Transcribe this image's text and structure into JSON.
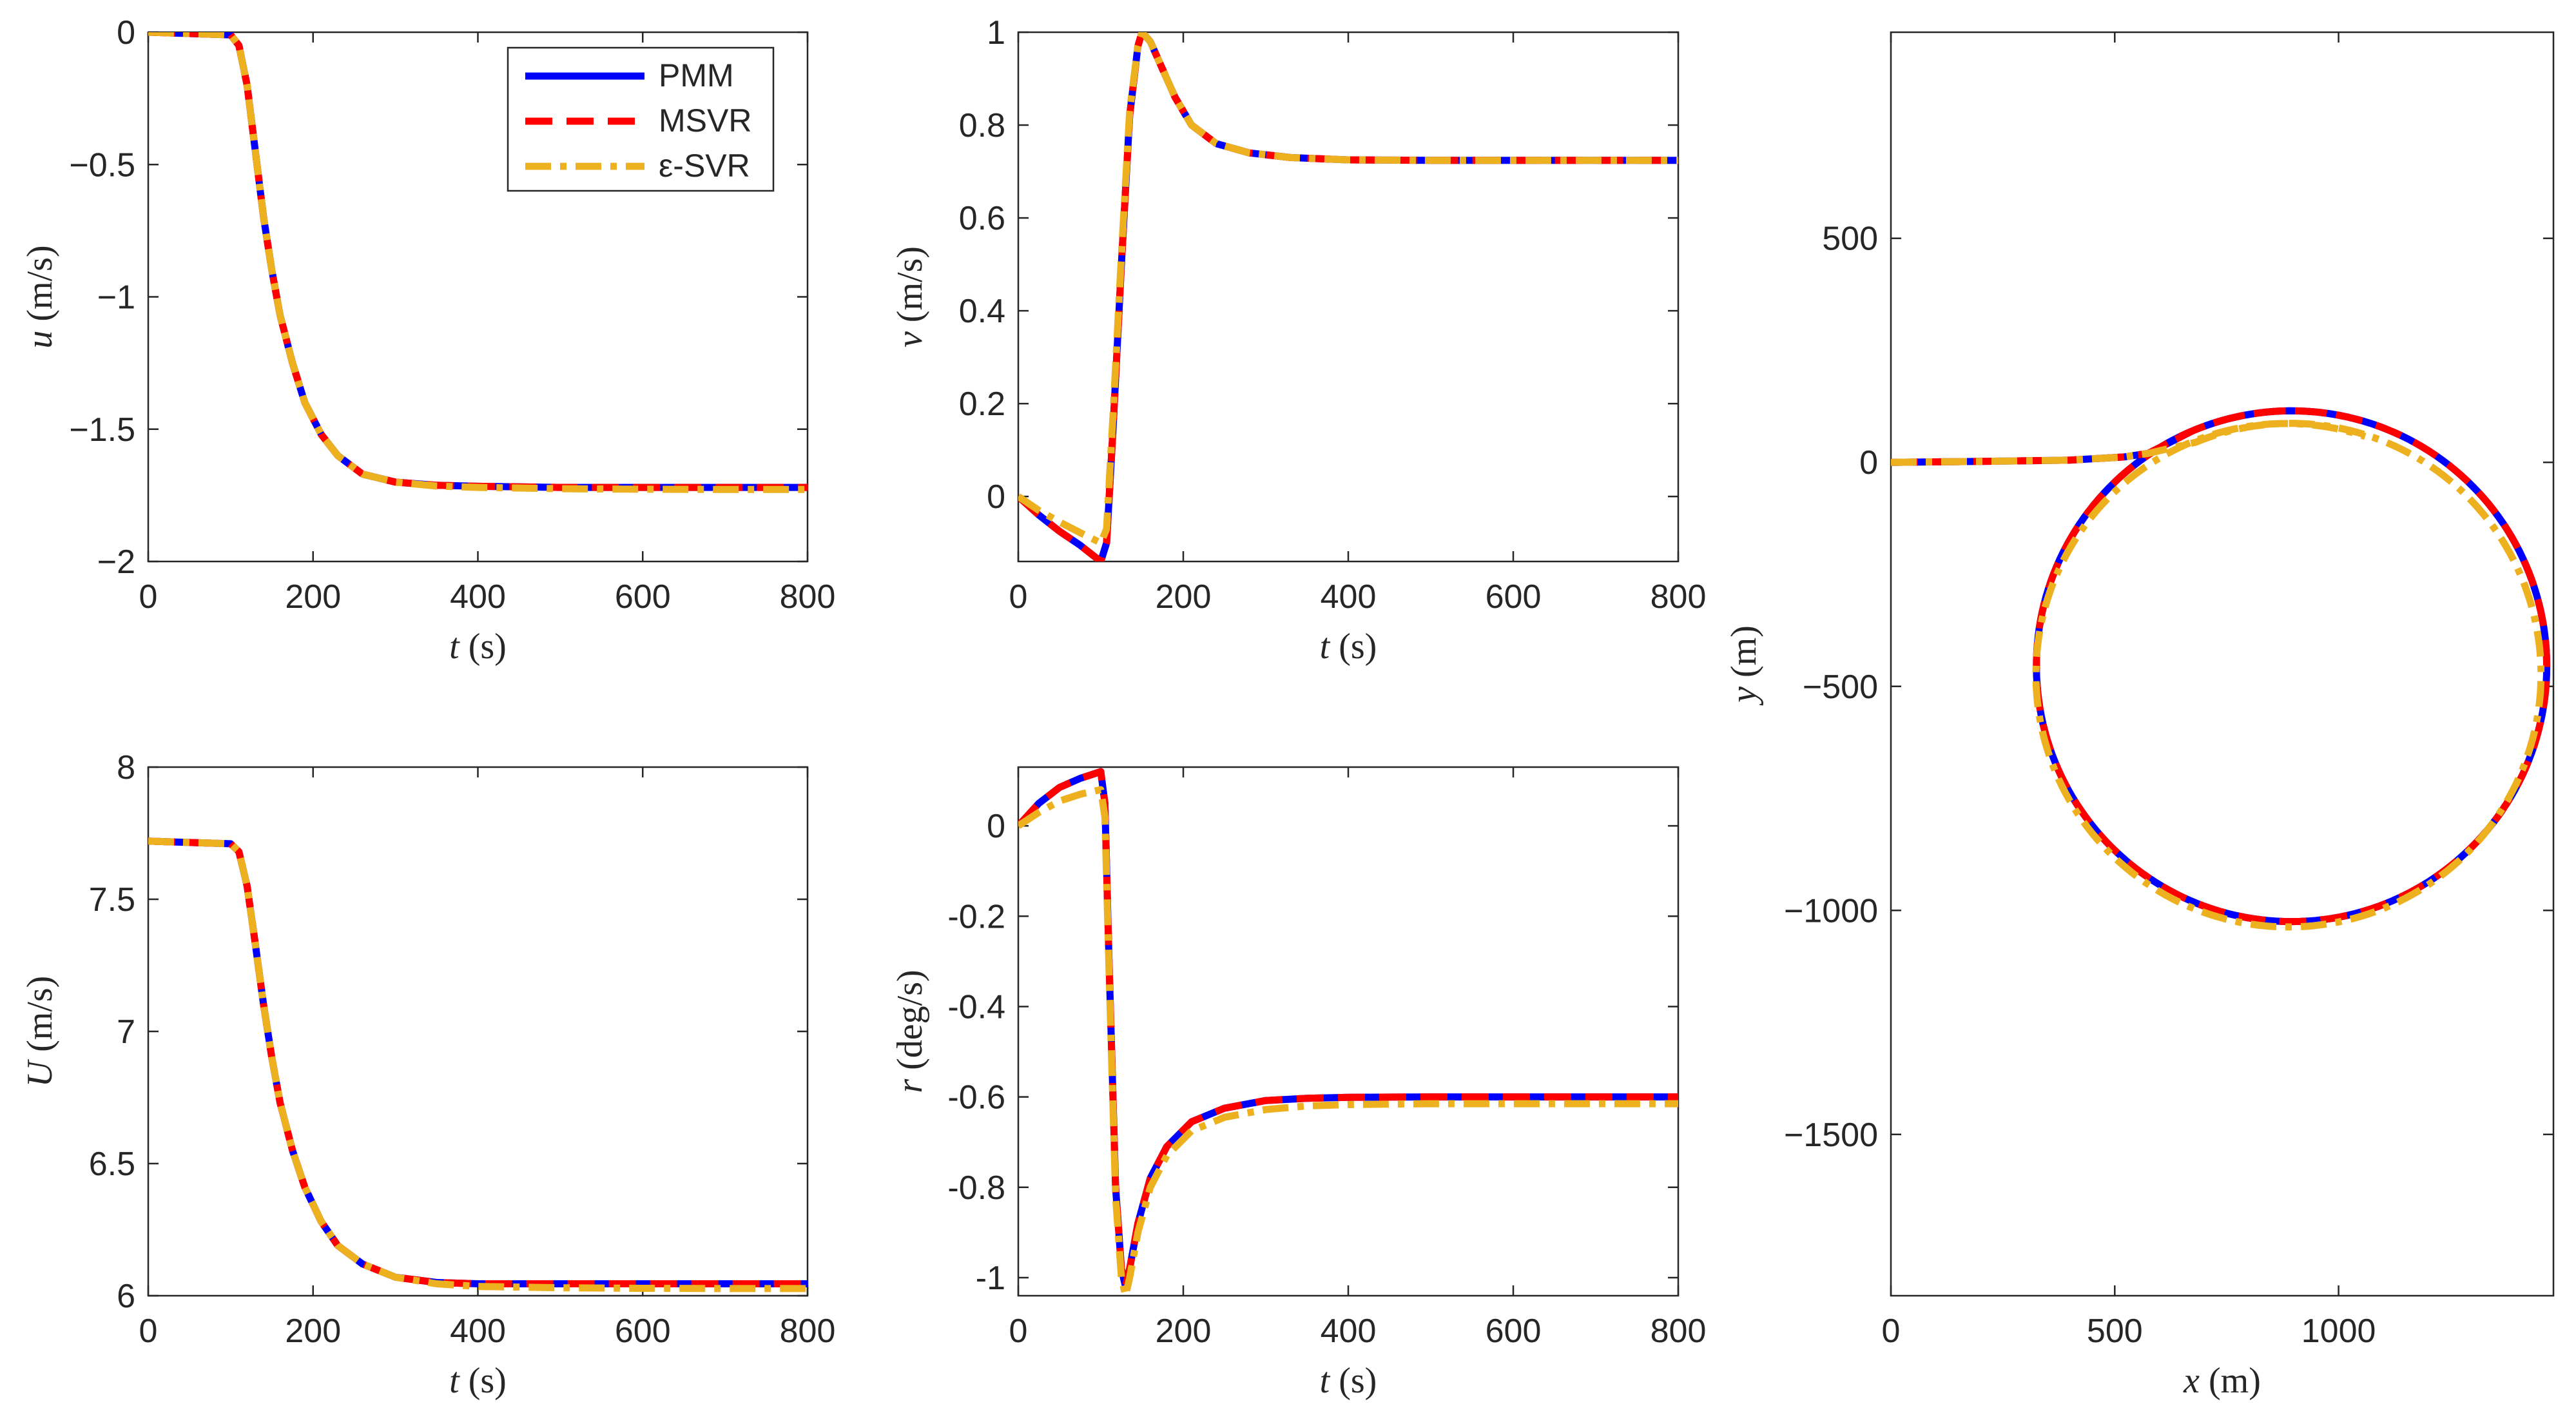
{
  "colors": {
    "PMM": "#0000ff",
    "MSVR": "#ff0000",
    "eps_SVR": "#edb120",
    "axis": "#262626"
  },
  "legend": {
    "location": "top-right of first panel",
    "entries": [
      {
        "key": "PMM",
        "label": "PMM"
      },
      {
        "key": "MSVR",
        "label": "MSVR"
      },
      {
        "key": "eps_SVR",
        "label": "ε-SVR"
      }
    ]
  },
  "chart_data": [
    {
      "id": "u",
      "type": "line",
      "ylabel_var": "u",
      "ylabel_unit": " (m/s)",
      "xlabel_var": "t",
      "xlabel_unit": " (s)",
      "xlim": [
        0,
        800
      ],
      "ylim": [
        -2,
        0
      ],
      "xticks": [
        0,
        200,
        400,
        600,
        800
      ],
      "yticks": [
        0,
        -0.5,
        -1,
        -1.5,
        -2
      ],
      "ytick_labels": [
        "0",
        "−0.5",
        "−1",
        "−1.5",
        "−2"
      ],
      "series": [
        {
          "name": "PMM",
          "x": [
            0,
            100,
            110,
            120,
            130,
            140,
            150,
            160,
            175,
            190,
            210,
            230,
            260,
            300,
            350,
            400,
            500,
            600,
            700,
            800
          ],
          "y": [
            0,
            -0.01,
            -0.05,
            -0.2,
            -0.45,
            -0.7,
            -0.9,
            -1.07,
            -1.25,
            -1.4,
            -1.52,
            -1.6,
            -1.67,
            -1.7,
            -1.712,
            -1.716,
            -1.72,
            -1.72,
            -1.72,
            -1.72
          ]
        },
        {
          "name": "MSVR",
          "x": [
            0,
            100,
            110,
            120,
            130,
            140,
            150,
            160,
            175,
            190,
            210,
            230,
            260,
            300,
            350,
            400,
            500,
            600,
            700,
            800
          ],
          "y": [
            0,
            -0.01,
            -0.05,
            -0.2,
            -0.45,
            -0.7,
            -0.9,
            -1.07,
            -1.25,
            -1.4,
            -1.52,
            -1.6,
            -1.67,
            -1.7,
            -1.712,
            -1.716,
            -1.72,
            -1.72,
            -1.72,
            -1.72
          ]
        },
        {
          "name": "ε-SVR",
          "x": [
            0,
            100,
            110,
            120,
            130,
            140,
            150,
            160,
            175,
            190,
            210,
            230,
            260,
            300,
            350,
            400,
            500,
            600,
            700,
            800
          ],
          "y": [
            0,
            -0.01,
            -0.05,
            -0.2,
            -0.45,
            -0.7,
            -0.9,
            -1.07,
            -1.25,
            -1.4,
            -1.52,
            -1.6,
            -1.67,
            -1.7,
            -1.715,
            -1.72,
            -1.725,
            -1.727,
            -1.728,
            -1.728
          ]
        }
      ]
    },
    {
      "id": "v",
      "type": "line",
      "ylabel_var": "v",
      "ylabel_unit": " (m/s)",
      "xlabel_var": "t",
      "xlabel_unit": " (s)",
      "xlim": [
        0,
        800
      ],
      "ylim": [
        -0.14,
        1
      ],
      "xticks": [
        0,
        200,
        400,
        600,
        800
      ],
      "yticks": [
        0,
        0.2,
        0.4,
        0.6,
        0.8,
        1
      ],
      "ytick_labels": [
        "0",
        "0.2",
        "0.4",
        "0.6",
        "0.8",
        "1"
      ],
      "series": [
        {
          "name": "PMM",
          "x": [
            0,
            25,
            50,
            75,
            100,
            107,
            115,
            125,
            135,
            145,
            150,
            160,
            175,
            190,
            210,
            240,
            280,
            330,
            400,
            500,
            600,
            700,
            800
          ],
          "y": [
            0,
            -0.04,
            -0.075,
            -0.105,
            -0.14,
            -0.1,
            0.15,
            0.5,
            0.82,
            0.97,
            1.0,
            0.98,
            0.92,
            0.86,
            0.8,
            0.76,
            0.74,
            0.73,
            0.725,
            0.724,
            0.724,
            0.724,
            0.724
          ]
        },
        {
          "name": "MSVR",
          "x": [
            0,
            25,
            50,
            75,
            100,
            107,
            115,
            125,
            135,
            145,
            150,
            160,
            175,
            190,
            210,
            240,
            280,
            330,
            400,
            500,
            600,
            700,
            800
          ],
          "y": [
            0,
            -0.04,
            -0.075,
            -0.105,
            -0.14,
            -0.1,
            0.15,
            0.5,
            0.82,
            0.97,
            1.0,
            0.98,
            0.92,
            0.86,
            0.8,
            0.76,
            0.74,
            0.73,
            0.725,
            0.724,
            0.724,
            0.724,
            0.724
          ]
        },
        {
          "name": "ε-SVR",
          "x": [
            0,
            25,
            50,
            75,
            100,
            107,
            115,
            125,
            135,
            145,
            150,
            160,
            175,
            190,
            210,
            240,
            280,
            330,
            400,
            500,
            600,
            700,
            800
          ],
          "y": [
            0,
            -0.03,
            -0.055,
            -0.078,
            -0.1,
            -0.07,
            0.18,
            0.52,
            0.83,
            0.97,
            1.0,
            0.98,
            0.92,
            0.86,
            0.8,
            0.76,
            0.74,
            0.73,
            0.725,
            0.724,
            0.724,
            0.724,
            0.724
          ]
        }
      ]
    },
    {
      "id": "U",
      "type": "line",
      "ylabel_var": "U",
      "ylabel_unit": " (m/s)",
      "xlabel_var": "t",
      "xlabel_unit": " (s)",
      "xlim": [
        0,
        800
      ],
      "ylim": [
        6,
        8
      ],
      "xticks": [
        0,
        200,
        400,
        600,
        800
      ],
      "yticks": [
        8,
        7.5,
        7,
        6.5,
        6
      ],
      "ytick_labels": [
        "8",
        "7.5",
        "7",
        "6.5",
        "6"
      ],
      "series": [
        {
          "name": "PMM",
          "x": [
            0,
            100,
            110,
            120,
            130,
            140,
            150,
            160,
            175,
            190,
            210,
            230,
            260,
            300,
            350,
            400,
            500,
            600,
            700,
            800
          ],
          "y": [
            7.72,
            7.71,
            7.68,
            7.55,
            7.33,
            7.1,
            6.9,
            6.73,
            6.55,
            6.41,
            6.28,
            6.19,
            6.12,
            6.07,
            6.05,
            6.045,
            6.045,
            6.045,
            6.045,
            6.045
          ]
        },
        {
          "name": "MSVR",
          "x": [
            0,
            100,
            110,
            120,
            130,
            140,
            150,
            160,
            175,
            190,
            210,
            230,
            260,
            300,
            350,
            400,
            500,
            600,
            700,
            800
          ],
          "y": [
            7.72,
            7.71,
            7.68,
            7.55,
            7.33,
            7.1,
            6.9,
            6.73,
            6.55,
            6.41,
            6.28,
            6.19,
            6.12,
            6.07,
            6.05,
            6.045,
            6.045,
            6.045,
            6.045,
            6.045
          ]
        },
        {
          "name": "ε-SVR",
          "x": [
            0,
            100,
            110,
            120,
            130,
            140,
            150,
            160,
            175,
            190,
            210,
            230,
            260,
            300,
            350,
            400,
            500,
            600,
            700,
            800
          ],
          "y": [
            7.72,
            7.71,
            7.68,
            7.55,
            7.33,
            7.1,
            6.9,
            6.73,
            6.55,
            6.41,
            6.28,
            6.19,
            6.12,
            6.07,
            6.045,
            6.035,
            6.03,
            6.028,
            6.027,
            6.027
          ]
        }
      ]
    },
    {
      "id": "r",
      "type": "line",
      "ylabel_var": "r",
      "ylabel_unit": " (deg/s)",
      "xlabel_var": "t",
      "xlabel_unit": " (s)",
      "xlim": [
        0,
        800
      ],
      "ylim": [
        -1.04,
        0.13
      ],
      "xticks": [
        0,
        200,
        400,
        600,
        800
      ],
      "yticks": [
        0,
        -0.2,
        -0.4,
        -0.6,
        -0.8,
        -1
      ],
      "ytick_labels": [
        "0",
        "-0.2",
        "-0.4",
        "-0.6",
        "-0.8",
        "-1"
      ],
      "series": [
        {
          "name": "PMM",
          "x": [
            0,
            25,
            50,
            75,
            100,
            105,
            110,
            118,
            125,
            130,
            135,
            145,
            160,
            180,
            210,
            250,
            300,
            350,
            400,
            500,
            600,
            700,
            800
          ],
          "y": [
            0,
            0.05,
            0.085,
            0.105,
            0.12,
            0.05,
            -0.3,
            -0.8,
            -0.98,
            -1.02,
            -0.98,
            -0.88,
            -0.78,
            -0.71,
            -0.655,
            -0.625,
            -0.608,
            -0.603,
            -0.601,
            -0.6,
            -0.6,
            -0.6,
            -0.6
          ]
        },
        {
          "name": "MSVR",
          "x": [
            0,
            25,
            50,
            75,
            100,
            105,
            110,
            118,
            125,
            130,
            135,
            145,
            160,
            180,
            210,
            250,
            300,
            350,
            400,
            500,
            600,
            700,
            800
          ],
          "y": [
            0,
            0.05,
            0.085,
            0.105,
            0.12,
            0.05,
            -0.3,
            -0.8,
            -0.98,
            -1.02,
            -0.98,
            -0.88,
            -0.78,
            -0.71,
            -0.655,
            -0.625,
            -0.608,
            -0.603,
            -0.601,
            -0.6,
            -0.6,
            -0.6,
            -0.6
          ]
        },
        {
          "name": "ε-SVR",
          "x": [
            0,
            25,
            50,
            75,
            100,
            105,
            110,
            118,
            125,
            130,
            135,
            145,
            160,
            180,
            210,
            250,
            300,
            350,
            400,
            500,
            600,
            700,
            800
          ],
          "y": [
            0,
            0.03,
            0.055,
            0.07,
            0.08,
            0.02,
            -0.32,
            -0.82,
            -1.0,
            -1.04,
            -1.0,
            -0.9,
            -0.8,
            -0.73,
            -0.675,
            -0.645,
            -0.628,
            -0.62,
            -0.617,
            -0.615,
            -0.615,
            -0.615,
            -0.615
          ]
        }
      ]
    },
    {
      "id": "xy",
      "type": "line",
      "ylabel_var": "y",
      "ylabel_unit": " (m)",
      "xlabel_var": "x",
      "xlabel_unit": " (m)",
      "xlim": [
        0,
        1480
      ],
      "ylim": [
        -1860,
        960
      ],
      "xticks": [
        0,
        500,
        1000
      ],
      "xtick_labels": [
        "0",
        "500",
        "1000"
      ],
      "yticks": [
        500,
        0,
        -500,
        -1000,
        -1500
      ],
      "ytick_labels": [
        "500",
        "0",
        "−500",
        "−1000",
        "−1500"
      ],
      "series": [
        {
          "name": "PMM",
          "type": "trajectory",
          "lead_in": [
            [
              0,
              0
            ],
            [
              200,
              2
            ],
            [
              400,
              5
            ],
            [
              520,
              12
            ],
            [
              575,
              20
            ]
          ],
          "circle": {
            "cx": 895,
            "cy": -455,
            "r": 570,
            "start_deg": 113,
            "sweep_deg": 395
          }
        },
        {
          "name": "MSVR",
          "type": "trajectory",
          "lead_in": [
            [
              0,
              0
            ],
            [
              200,
              2
            ],
            [
              400,
              5
            ],
            [
              520,
              12
            ],
            [
              575,
              20
            ]
          ],
          "circle": {
            "cx": 895,
            "cy": -455,
            "r": 570,
            "start_deg": 113,
            "sweep_deg": 395
          }
        },
        {
          "name": "ε-SVR",
          "type": "trajectory",
          "lead_in": [
            [
              0,
              0
            ],
            [
              200,
              2
            ],
            [
              400,
              5
            ],
            [
              520,
              12
            ],
            [
              575,
              20
            ]
          ],
          "circle": {
            "cx": 888,
            "cy": -470,
            "r": 555,
            "start_deg": 112,
            "sweep_deg": 400,
            "r_growth": 12
          }
        }
      ]
    }
  ]
}
